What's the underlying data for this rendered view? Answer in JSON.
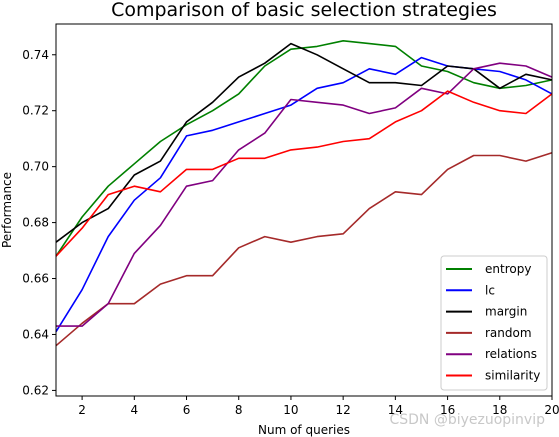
{
  "chart_data": {
    "type": "line",
    "title": "Comparison of basic selection strategies",
    "xlabel": "Num of queries",
    "ylabel": "Performance",
    "xlim": [
      1,
      20
    ],
    "ylim": [
      0.618,
      0.751
    ],
    "x": [
      1,
      2,
      3,
      4,
      5,
      6,
      7,
      8,
      9,
      10,
      11,
      12,
      13,
      14,
      15,
      16,
      17,
      18,
      19,
      20
    ],
    "xticks": [
      2,
      4,
      6,
      8,
      10,
      12,
      14,
      16,
      18,
      20
    ],
    "yticks": [
      0.62,
      0.64,
      0.66,
      0.68,
      0.7,
      0.72,
      0.74
    ],
    "grid": false,
    "legend_position": "bottom-right",
    "series": [
      {
        "name": "entropy",
        "color": "#008000",
        "values": [
          0.668,
          0.682,
          0.693,
          0.701,
          0.709,
          0.715,
          0.72,
          0.726,
          0.736,
          0.742,
          0.743,
          0.745,
          0.744,
          0.743,
          0.736,
          0.734,
          0.73,
          0.728,
          0.729,
          0.731
        ]
      },
      {
        "name": "lc",
        "color": "#0000ff",
        "values": [
          0.641,
          0.656,
          0.675,
          0.688,
          0.696,
          0.711,
          0.713,
          0.716,
          0.719,
          0.722,
          0.728,
          0.73,
          0.735,
          0.733,
          0.739,
          0.736,
          0.735,
          0.734,
          0.731,
          0.726
        ]
      },
      {
        "name": "margin",
        "color": "#000000",
        "values": [
          0.673,
          0.68,
          0.685,
          0.697,
          0.702,
          0.716,
          0.723,
          0.732,
          0.737,
          0.744,
          0.74,
          0.735,
          0.73,
          0.73,
          0.729,
          0.736,
          0.735,
          0.728,
          0.733,
          0.731
        ]
      },
      {
        "name": "random",
        "color": "#a52a2a",
        "values": [
          0.636,
          0.644,
          0.651,
          0.651,
          0.658,
          0.661,
          0.661,
          0.671,
          0.675,
          0.673,
          0.675,
          0.676,
          0.685,
          0.691,
          0.69,
          0.699,
          0.704,
          0.704,
          0.702,
          0.705
        ]
      },
      {
        "name": "relations",
        "color": "#800080",
        "values": [
          0.643,
          0.643,
          0.651,
          0.669,
          0.679,
          0.693,
          0.695,
          0.706,
          0.712,
          0.724,
          0.723,
          0.722,
          0.719,
          0.721,
          0.728,
          0.726,
          0.735,
          0.737,
          0.736,
          0.732
        ]
      },
      {
        "name": "similarity",
        "color": "#ff0000",
        "values": [
          0.668,
          0.678,
          0.69,
          0.693,
          0.691,
          0.699,
          0.699,
          0.703,
          0.703,
          0.706,
          0.707,
          0.709,
          0.71,
          0.716,
          0.72,
          0.727,
          0.723,
          0.72,
          0.719,
          0.726
        ]
      }
    ]
  },
  "watermark": "CSDN @biyezuopinvip"
}
